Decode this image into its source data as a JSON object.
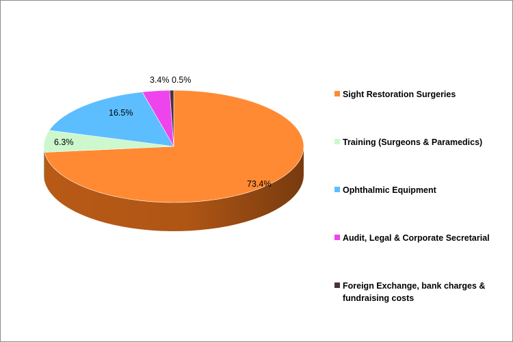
{
  "chart_data": {
    "type": "pie",
    "style": "3d",
    "title": "",
    "start_angle_deg": 90,
    "direction": "clockwise",
    "legend_position": "right",
    "data_label_format": "percent",
    "slices": [
      {
        "name": "Sight Restoration Surgeries",
        "value": 73.4,
        "label": "73.4%",
        "color": "#FF8A33",
        "side_color": "#B85A16"
      },
      {
        "name": "Training (Surgeons & Paramedics)",
        "value": 6.3,
        "label": "6.3%",
        "color": "#CDF7CD",
        "side_color": "#8FB78F"
      },
      {
        "name": "Ophthalmic Equipment",
        "value": 16.5,
        "label": "16.5%",
        "color": "#5CBEFF",
        "side_color": "#2E7FB8"
      },
      {
        "name": "Audit, Legal & Corporate Secretarial",
        "value": 3.4,
        "label": "3.4%",
        "color": "#EE44EE",
        "side_color": "#A52BA5"
      },
      {
        "name": "Foreign Exchange, bank charges & fundraising costs",
        "value": 0.5,
        "label": "0.5%",
        "color": "#4A3140",
        "side_color": "#2A1B24"
      }
    ]
  }
}
